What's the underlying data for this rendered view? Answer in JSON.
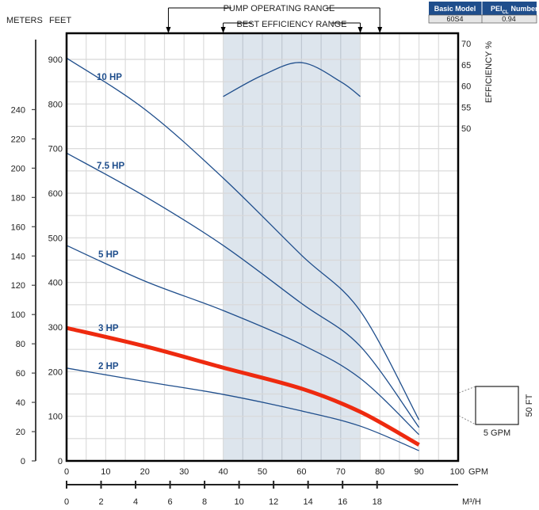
{
  "chart_data": {
    "type": "line",
    "title": "",
    "x_primary": {
      "label": "GPM",
      "range": [
        0,
        100
      ],
      "ticks": [
        0,
        10,
        20,
        30,
        40,
        50,
        60,
        70,
        80,
        90,
        100
      ]
    },
    "x_secondary": {
      "label": "M³/H",
      "range": [
        0,
        22.7
      ],
      "ticks": [
        0,
        2,
        4,
        6,
        8,
        10,
        12,
        14,
        16,
        18
      ]
    },
    "y_feet": {
      "label": "FEET",
      "range": [
        0,
        900
      ],
      "ticks": [
        0,
        100,
        200,
        300,
        400,
        500,
        600,
        700,
        800,
        900
      ]
    },
    "y_meters": {
      "label": "METERS",
      "range": [
        0,
        274
      ],
      "ticks": [
        0,
        20,
        40,
        60,
        80,
        100,
        120,
        140,
        160,
        180,
        200,
        220,
        240
      ]
    },
    "y_efficiency": {
      "label": "EFFICIENCY %",
      "range": [
        50,
        70
      ],
      "ticks": [
        50,
        55,
        60,
        65,
        70
      ]
    },
    "grid": true,
    "series": [
      {
        "name": "10 HP",
        "highlight": false,
        "x": [
          0,
          20,
          40,
          60,
          75,
          90
        ],
        "y": [
          903,
          788,
          634,
          461,
          336,
          92
        ]
      },
      {
        "name": "7.5 HP",
        "highlight": false,
        "x": [
          0,
          20,
          40,
          60,
          75,
          90
        ],
        "y": [
          690,
          593,
          483,
          353,
          257,
          75
        ]
      },
      {
        "name": "5 HP",
        "highlight": false,
        "x": [
          0,
          20,
          40,
          60,
          75,
          90
        ],
        "y": [
          483,
          403,
          337,
          261,
          185,
          59
        ]
      },
      {
        "name": "3 HP",
        "highlight": true,
        "x": [
          0,
          20,
          40,
          60,
          75,
          90
        ],
        "y": [
          298,
          257,
          209,
          162,
          110,
          36
        ]
      },
      {
        "name": "2 HP",
        "highlight": false,
        "x": [
          0,
          20,
          40,
          60,
          75,
          90
        ],
        "y": [
          208,
          178,
          149,
          112,
          78,
          23
        ]
      }
    ],
    "efficiency_curve": {
      "name": "Efficiency",
      "x": [
        40,
        50,
        60,
        70,
        75
      ],
      "y": [
        57.5,
        62.5,
        65.5,
        61,
        57.5
      ]
    },
    "annotations": {
      "pump_operating_range": {
        "label": "PUMP OPERATING RANGE",
        "x_from": 26,
        "x_to": 80
      },
      "best_efficiency_range": {
        "label": "BEST EFFICIENCY RANGE",
        "x_from": 40,
        "x_to": 75
      },
      "scale_box": {
        "width_label": "5 GPM",
        "height_label": "50 FT"
      }
    }
  },
  "info_table": {
    "headers": [
      "Basic Model",
      "PEI",
      "CL",
      "Number"
    ],
    "model": "60S4",
    "pei": "0.94"
  },
  "colors": {
    "curve": "#1f4e8c",
    "highlight": "#ee2a0f",
    "bep_band": "#dde5ed",
    "header_bg": "#1f4e8c"
  }
}
